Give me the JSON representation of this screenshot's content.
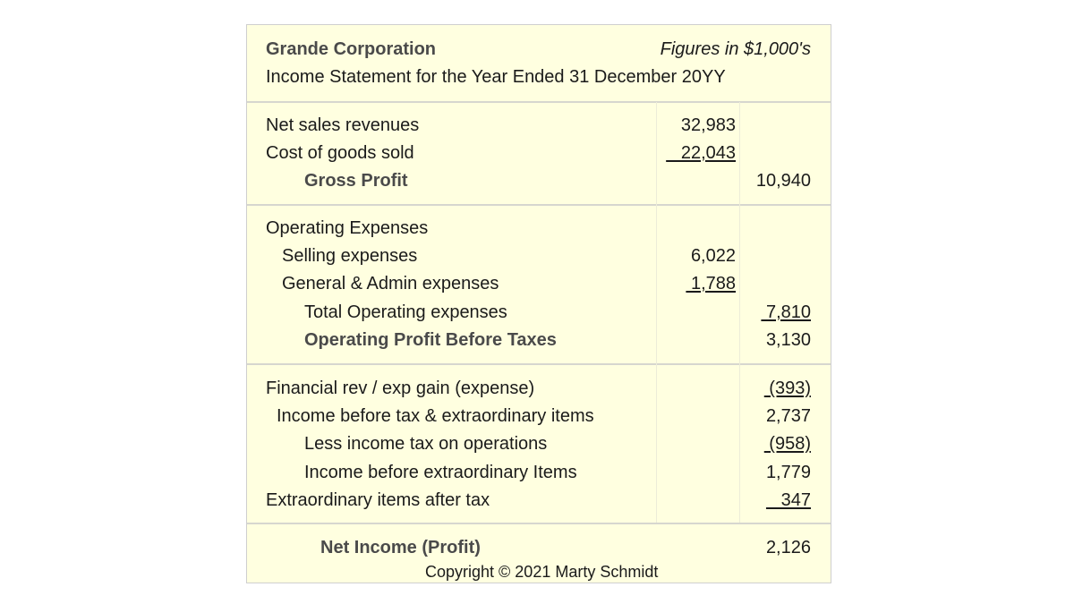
{
  "header": {
    "company": "Grande Corporation",
    "units": "Figures in $1,000's",
    "statement_title": "Income Statement for the Year Ended 31 December 20YY"
  },
  "sales_section": {
    "net_sales_label": "Net sales revenues",
    "net_sales_value": "32,983",
    "cogs_label": "Cost of goods sold",
    "cogs_value": "   22,043",
    "gross_profit_label": "Gross Profit",
    "gross_profit_value": "10,940"
  },
  "operating_section": {
    "heading": "Operating Expenses",
    "selling_label": "Selling expenses",
    "selling_value": "6,022",
    "gen_admin_label": "General & Admin expenses",
    "gen_admin_value": " 1,788",
    "total_label": "Total Operating expenses",
    "total_value": " 7,810",
    "profit_before_tax_label": "Operating Profit Before Taxes",
    "profit_before_tax_value": "3,130"
  },
  "other_section": {
    "financial_label": "Financial rev / exp gain (expense)",
    "financial_value": " (393)",
    "income_before_tax_label": "Income before tax & extraordinary items",
    "income_before_tax_value": "2,737",
    "income_tax_label": "Less income tax on operations",
    "income_tax_value": " (958)",
    "income_before_extra_label": "Income before extraordinary Items",
    "income_before_extra_value": "1,779",
    "extraordinary_label": "Extraordinary items after tax",
    "extraordinary_value": "   347"
  },
  "net_section": {
    "net_income_label": "Net Income (Profit)",
    "net_income_value": "2,126",
    "copyright": "Copyright © 2021 Marty Schmidt"
  }
}
